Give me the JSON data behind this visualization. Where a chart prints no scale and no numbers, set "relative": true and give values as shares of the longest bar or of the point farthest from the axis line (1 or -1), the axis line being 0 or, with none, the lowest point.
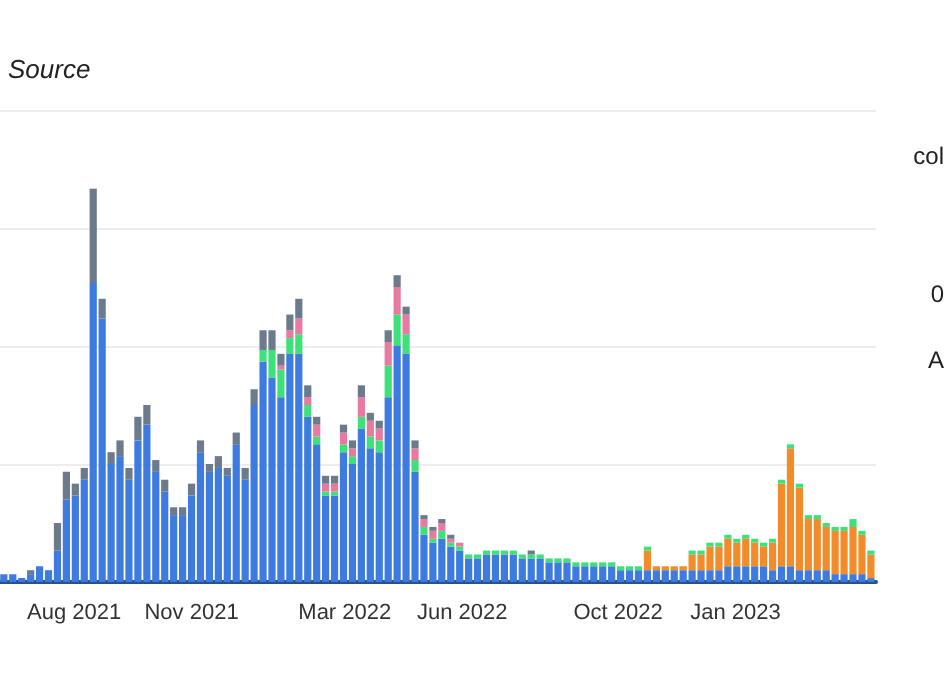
{
  "chart_data": {
    "type": "bar",
    "title": "Source",
    "stacked": true,
    "relative": true,
    "grid": "y",
    "annotations": [
      "col",
      "0",
      "A"
    ],
    "x": [
      "2021-06-07",
      "2021-06-14",
      "2021-06-21",
      "2021-06-28",
      "2021-07-05",
      "2021-07-12",
      "2021-07-19",
      "2021-07-26",
      "2021-08-02",
      "2021-08-09",
      "2021-08-16",
      "2021-08-23",
      "2021-08-30",
      "2021-09-06",
      "2021-09-13",
      "2021-09-20",
      "2021-09-27",
      "2021-10-04",
      "2021-10-11",
      "2021-10-18",
      "2021-10-25",
      "2021-11-01",
      "2021-11-08",
      "2021-11-15",
      "2021-11-22",
      "2021-11-29",
      "2021-12-06",
      "2021-12-13",
      "2021-12-20",
      "2021-12-27",
      "2022-01-03",
      "2022-01-10",
      "2022-01-17",
      "2022-01-24",
      "2022-01-31",
      "2022-02-07",
      "2022-02-14",
      "2022-02-21",
      "2022-02-28",
      "2022-03-07",
      "2022-03-14",
      "2022-03-21",
      "2022-03-28",
      "2022-04-04",
      "2022-04-11",
      "2022-04-18",
      "2022-04-25",
      "2022-05-02",
      "2022-05-09",
      "2022-05-16",
      "2022-05-23",
      "2022-05-30",
      "2022-06-06",
      "2022-06-13",
      "2022-06-20",
      "2022-06-27",
      "2022-07-04",
      "2022-07-11",
      "2022-07-18",
      "2022-07-25",
      "2022-08-01",
      "2022-08-08",
      "2022-08-15",
      "2022-08-22",
      "2022-08-29",
      "2022-09-05",
      "2022-09-12",
      "2022-09-19",
      "2022-09-26",
      "2022-10-03",
      "2022-10-10",
      "2022-10-17",
      "2022-10-24",
      "2022-10-31",
      "2022-11-07",
      "2022-11-14",
      "2022-11-21",
      "2022-11-28",
      "2022-12-05",
      "2022-12-12",
      "2022-12-19",
      "2022-12-26",
      "2023-01-02",
      "2023-01-09",
      "2023-01-16",
      "2023-01-23",
      "2023-01-30",
      "2023-02-06",
      "2023-02-13",
      "2023-02-20",
      "2023-02-27",
      "2023-03-06",
      "2023-03-13",
      "2023-03-20",
      "2023-03-27",
      "2023-04-03",
      "2023-04-10",
      "2023-04-17"
    ],
    "xlim": [
      "2021-06-04",
      "2023-04-21"
    ],
    "xticks": [
      {
        "value": "2021-08-01",
        "label": "Aug 2021"
      },
      {
        "value": "2021-11-01",
        "label": "Nov 2021"
      },
      {
        "value": "2022-03-01",
        "label": "Mar 2022"
      },
      {
        "value": "2022-06-01",
        "label": "Jun 2022"
      },
      {
        "value": "2022-10-01",
        "label": "Oct 2022"
      },
      {
        "value": "2023-01-01",
        "label": "Jan 2023"
      }
    ],
    "series": [
      {
        "color": "#3d7be0",
        "values": [
          0.02,
          0.02,
          0.01,
          0.02,
          0.04,
          0.03,
          0.08,
          0.21,
          0.22,
          0.26,
          0.76,
          0.67,
          0.3,
          0.32,
          0.26,
          0.36,
          0.4,
          0.28,
          0.23,
          0.17,
          0.17,
          0.22,
          0.33,
          0.28,
          0.29,
          0.27,
          0.35,
          0.26,
          0.45,
          0.56,
          0.52,
          0.47,
          0.58,
          0.58,
          0.42,
          0.35,
          0.22,
          0.22,
          0.33,
          0.3,
          0.39,
          0.34,
          0.33,
          0.47,
          0.6,
          0.58,
          0.28,
          0.12,
          0.1,
          0.11,
          0.09,
          0.08,
          0.06,
          0.06,
          0.07,
          0.07,
          0.07,
          0.07,
          0.06,
          0.06,
          0.06,
          0.05,
          0.05,
          0.05,
          0.04,
          0.04,
          0.04,
          0.04,
          0.04,
          0.03,
          0.03,
          0.03,
          0.03,
          0.03,
          0.03,
          0.03,
          0.03,
          0.03,
          0.03,
          0.03,
          0.03,
          0.04,
          0.04,
          0.04,
          0.04,
          0.04,
          0.03,
          0.04,
          0.04,
          0.03,
          0.03,
          0.03,
          0.03,
          0.02,
          0.02,
          0.02,
          0.02,
          0.01
        ]
      },
      {
        "color": "#f28b2a",
        "values": [
          0,
          0,
          0,
          0,
          0,
          0,
          0,
          0,
          0,
          0,
          0,
          0,
          0,
          0,
          0,
          0,
          0,
          0,
          0,
          0,
          0,
          0,
          0,
          0,
          0,
          0,
          0,
          0,
          0,
          0,
          0,
          0,
          0,
          0,
          0,
          0,
          0,
          0,
          0,
          0,
          0,
          0,
          0,
          0,
          0,
          0,
          0,
          0,
          0,
          0,
          0,
          0,
          0,
          0,
          0,
          0,
          0,
          0,
          0,
          0,
          0,
          0,
          0,
          0,
          0,
          0,
          0,
          0,
          0,
          0,
          0,
          0,
          0.05,
          0.01,
          0.01,
          0.01,
          0.01,
          0.04,
          0.04,
          0.06,
          0.06,
          0.07,
          0.06,
          0.07,
          0.06,
          0.05,
          0.07,
          0.21,
          0.3,
          0.21,
          0.13,
          0.13,
          0.11,
          0.11,
          0.11,
          0.12,
          0.1,
          0.06
        ]
      },
      {
        "color": "#3ee07a",
        "values": [
          0,
          0,
          0,
          0,
          0,
          0,
          0,
          0,
          0,
          0,
          0,
          0,
          0,
          0,
          0,
          0,
          0,
          0,
          0,
          0,
          0,
          0,
          0,
          0,
          0,
          0,
          0,
          0,
          0,
          0.03,
          0.07,
          0.07,
          0.04,
          0.05,
          0.03,
          0.02,
          0.01,
          0.01,
          0.02,
          0.02,
          0.03,
          0.03,
          0.03,
          0.08,
          0.08,
          0.05,
          0.03,
          0.02,
          0.01,
          0.02,
          0.01,
          0.01,
          0.01,
          0.01,
          0.01,
          0.01,
          0.01,
          0.01,
          0.01,
          0.01,
          0.01,
          0.01,
          0.01,
          0.01,
          0.01,
          0.01,
          0.01,
          0.01,
          0.01,
          0.01,
          0.01,
          0.01,
          0.01,
          0,
          0,
          0,
          0,
          0.01,
          0.01,
          0.01,
          0.01,
          0.01,
          0.01,
          0.01,
          0.01,
          0.01,
          0.01,
          0.01,
          0.01,
          0.01,
          0.01,
          0.01,
          0.01,
          0.01,
          0.01,
          0.02,
          0.01,
          0.01
        ]
      },
      {
        "color": "#e879a0",
        "values": [
          0,
          0,
          0,
          0,
          0,
          0,
          0,
          0,
          0,
          0,
          0,
          0,
          0,
          0,
          0,
          0,
          0,
          0,
          0,
          0,
          0,
          0,
          0,
          0,
          0,
          0,
          0,
          0,
          0,
          0,
          0,
          0.01,
          0.02,
          0.04,
          0.02,
          0.03,
          0.02,
          0.02,
          0.03,
          0.02,
          0.05,
          0.04,
          0.03,
          0.06,
          0.07,
          0.05,
          0.03,
          0.02,
          0.02,
          0.02,
          0.01,
          0.01,
          0,
          0,
          0,
          0,
          0,
          0,
          0,
          0,
          0,
          0,
          0,
          0,
          0,
          0,
          0,
          0,
          0,
          0,
          0,
          0,
          0,
          0,
          0,
          0,
          0,
          0,
          0,
          0,
          0,
          0,
          0,
          0,
          0,
          0,
          0,
          0,
          0,
          0,
          0,
          0,
          0,
          0,
          0,
          0,
          0,
          0
        ]
      },
      {
        "color": "#6b7b8c",
        "values": [
          0,
          0,
          0,
          0.01,
          0,
          0,
          0.07,
          0.07,
          0.03,
          0.03,
          0.24,
          0.05,
          0.03,
          0.04,
          0.03,
          0.06,
          0.05,
          0.03,
          0.03,
          0.02,
          0.02,
          0.03,
          0.03,
          0.02,
          0.03,
          0.02,
          0.03,
          0.03,
          0.04,
          0.05,
          0.05,
          0.03,
          0.04,
          0.05,
          0.03,
          0.02,
          0.02,
          0.02,
          0.02,
          0.02,
          0.03,
          0.02,
          0.02,
          0.03,
          0.03,
          0.02,
          0.02,
          0.01,
          0.01,
          0.01,
          0.01,
          0,
          0,
          0,
          0,
          0,
          0,
          0,
          0,
          0.01,
          0,
          0,
          0,
          0,
          0,
          0,
          0,
          0,
          0,
          0,
          0,
          0,
          0,
          0,
          0,
          0,
          0,
          0,
          0,
          0,
          0,
          0,
          0,
          0,
          0,
          0,
          0,
          0,
          0,
          0,
          0,
          0,
          0,
          0,
          0,
          0,
          0,
          0
        ]
      }
    ]
  }
}
